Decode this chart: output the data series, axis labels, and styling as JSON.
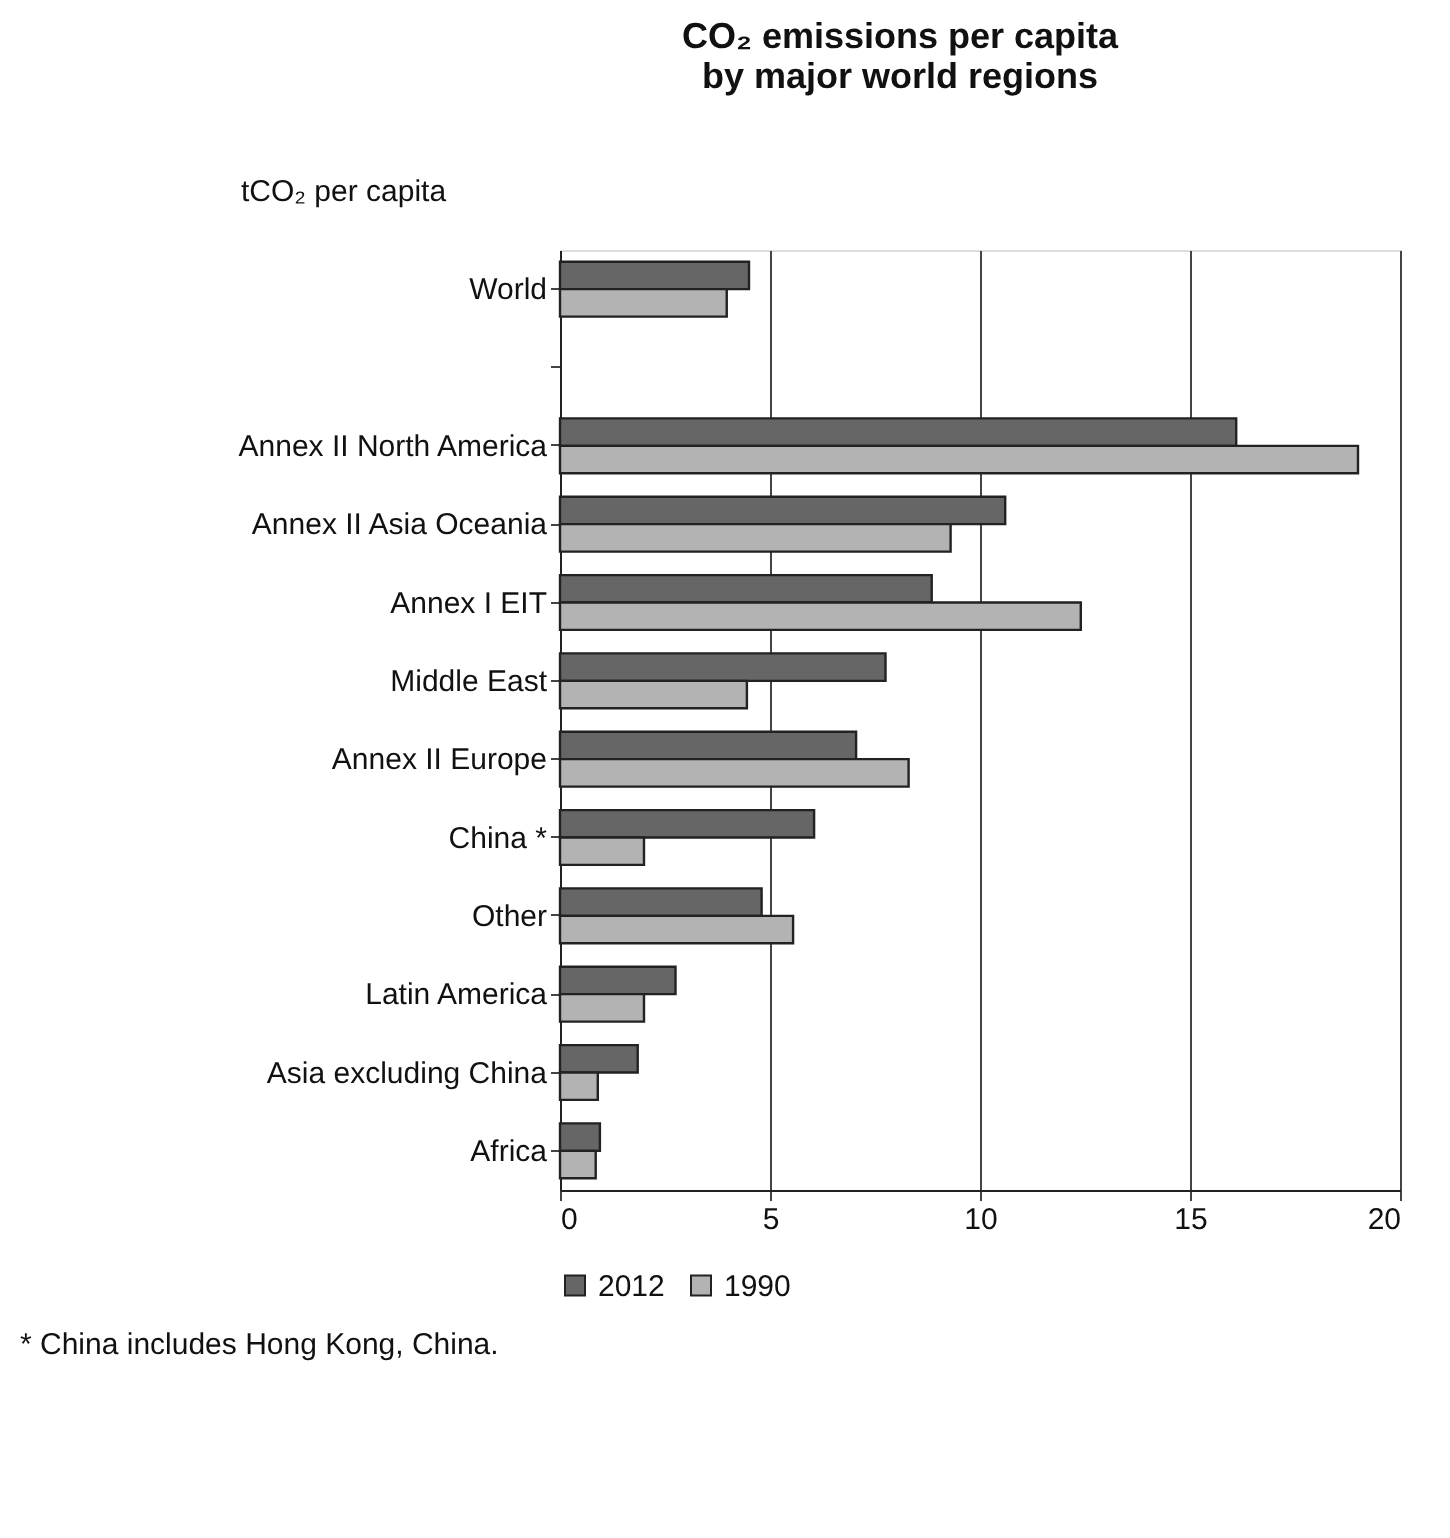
{
  "chart_data": {
    "type": "bar",
    "orientation": "horizontal",
    "title": "CO₂ emissions per capita\nby major world regions",
    "ylabel": "tCO₂ per capita",
    "categories": [
      "World",
      null,
      "Annex II North America",
      "Annex II Asia Oceania",
      "Annex I EIT",
      "Middle East",
      "Annex II Europe",
      "China *",
      "Other",
      "Latin America",
      "Asia excluding China",
      "Africa"
    ],
    "series": [
      {
        "name": "2012",
        "color": "#666666",
        "values": [
          4.5,
          null,
          16.1,
          10.6,
          8.85,
          7.75,
          7.05,
          6.05,
          4.8,
          2.75,
          1.85,
          0.95
        ]
      },
      {
        "name": "1990",
        "color": "#b3b3b3",
        "values": [
          3.97,
          null,
          19.0,
          9.3,
          12.4,
          4.45,
          8.3,
          2.0,
          5.55,
          2.0,
          0.9,
          0.85
        ]
      }
    ],
    "xlim": [
      0,
      20
    ],
    "xticks": [
      0,
      5,
      10,
      15,
      20
    ],
    "grid": "x",
    "legend": "bottom",
    "annotations": [
      "* China includes Hong Kong, China."
    ]
  }
}
